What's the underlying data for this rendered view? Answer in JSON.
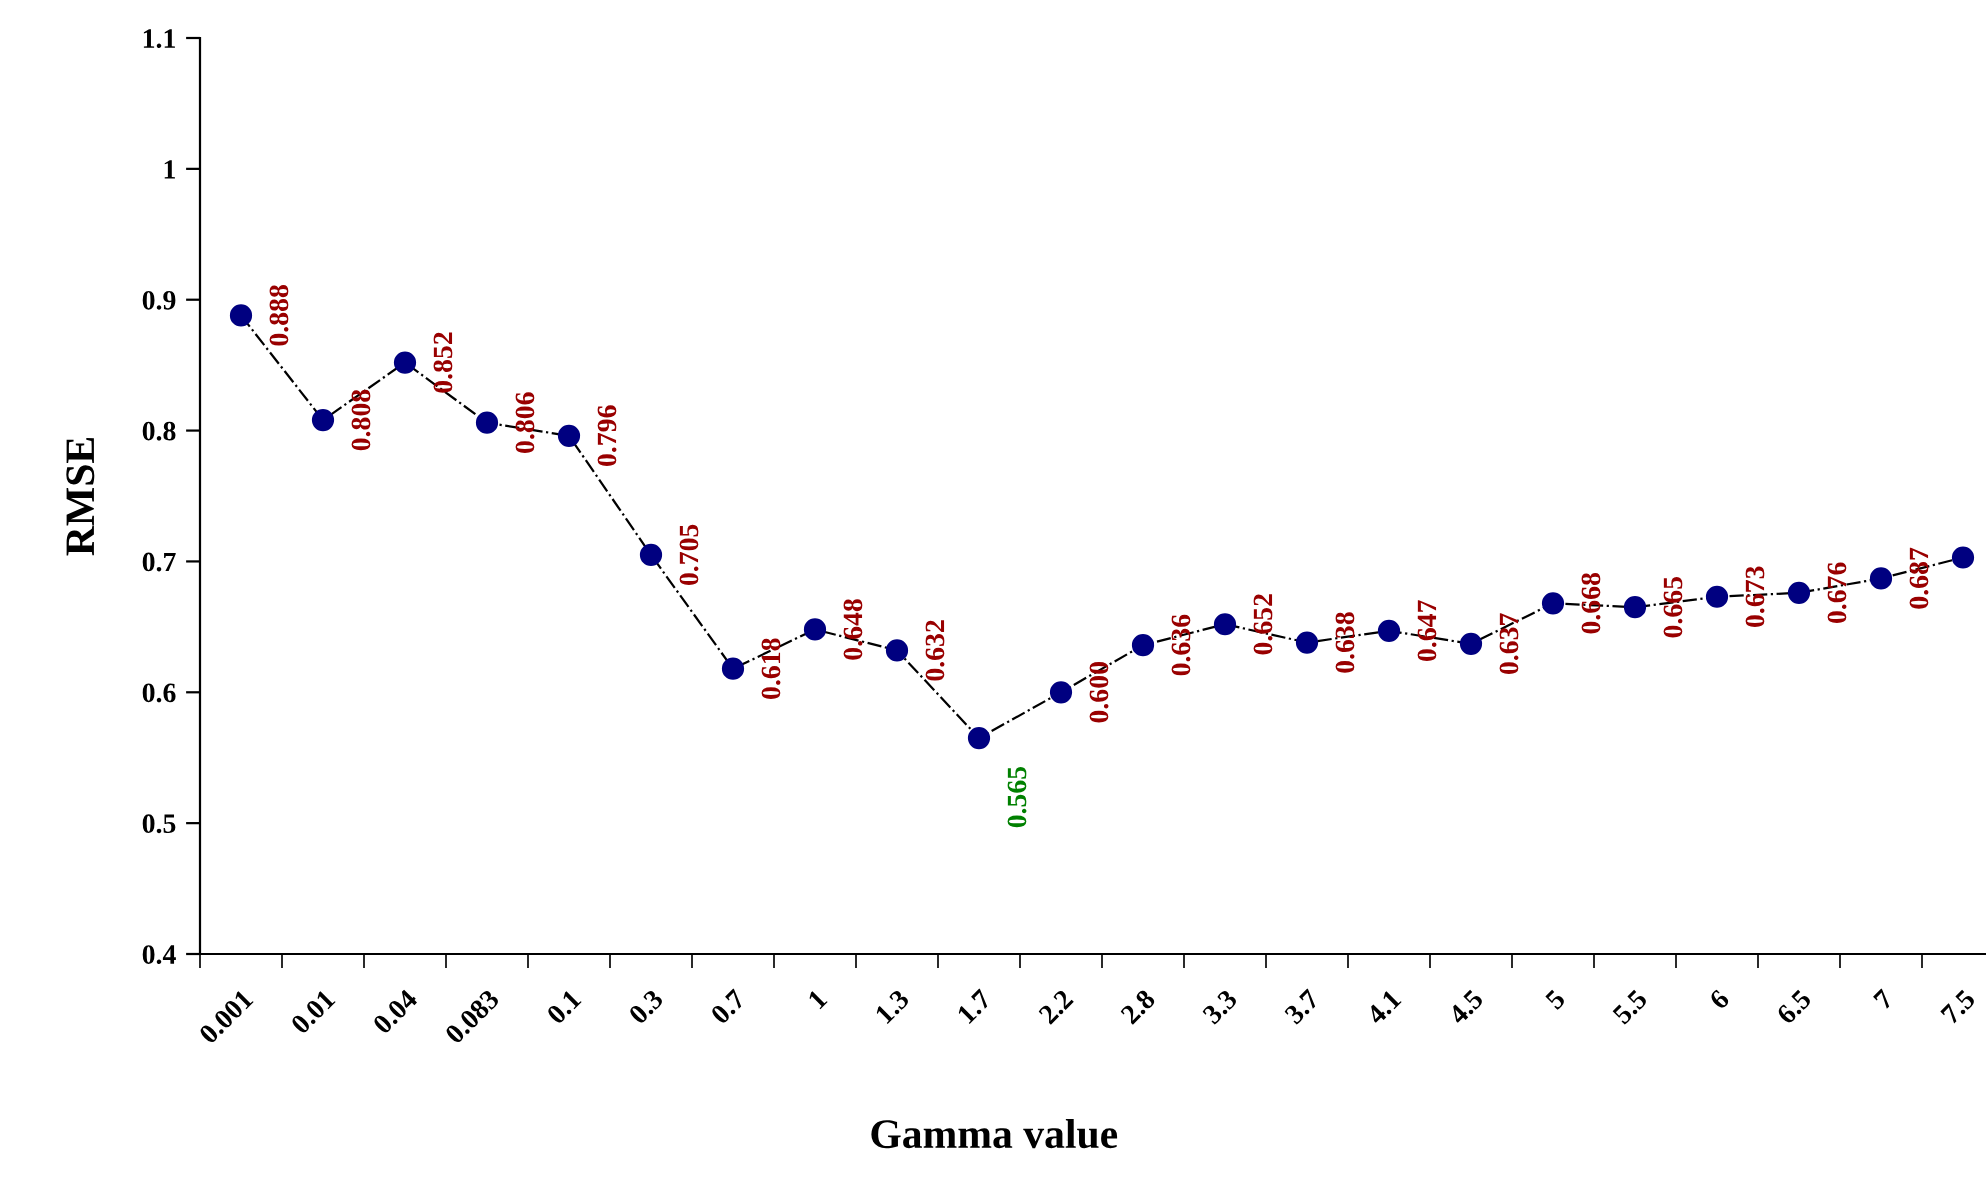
{
  "chart_data": {
    "type": "line",
    "xlabel": "Gamma value",
    "ylabel": "RMSE",
    "categories": [
      "0.001",
      "0.01",
      "0.04",
      "0.083",
      "0.1",
      "0.3",
      "0.7",
      "1",
      "1.3",
      "1.7",
      "2.2",
      "2.8",
      "3.3",
      "3.7",
      "4.1",
      "4.5",
      "5",
      "5.5",
      "6",
      "6.5",
      "7",
      "7.5"
    ],
    "series": [
      {
        "color": "#000080",
        "values": [
          0.888,
          0.808,
          0.852,
          0.806,
          0.796,
          0.705,
          0.618,
          0.648,
          0.632,
          0.565,
          0.6,
          0.636,
          0.652,
          0.638,
          0.647,
          0.637,
          0.668,
          0.665,
          0.673,
          0.676,
          0.687,
          0.703
        ],
        "value_labels": [
          "0.888",
          "0.808",
          "0.852",
          "0.806",
          "0.796",
          "0.705",
          "0.618",
          "0.648",
          "0.632",
          null,
          "0.600",
          "0.636",
          "0.652",
          "0.638",
          "0.647",
          "0.637",
          "0.668",
          "0.665",
          "0.673",
          "0.676",
          "0.687",
          null
        ]
      }
    ],
    "annotations": [
      {
        "text": "0.565",
        "x": "1.7",
        "y": 0.565
      }
    ],
    "ylim": [
      0.4,
      1.1
    ],
    "yticks": [
      0.4,
      0.5,
      0.6,
      0.7,
      0.8,
      0.9,
      1,
      1.1
    ],
    "marker": "circle",
    "line_style": "dashed",
    "grid": false,
    "legend": false
  }
}
